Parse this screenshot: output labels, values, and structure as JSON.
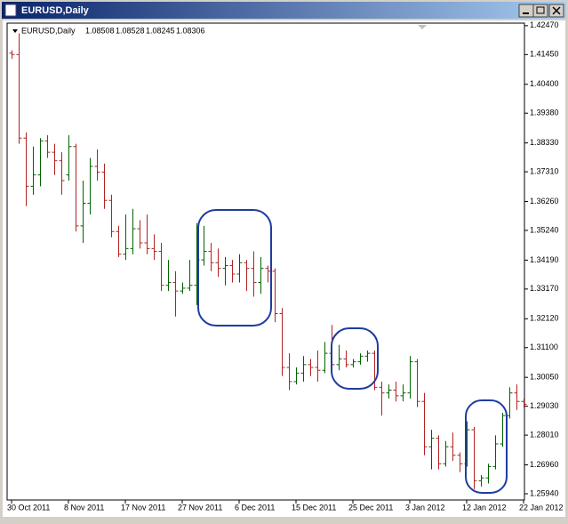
{
  "window_title": "EURUSD,Daily",
  "chart_data": {
    "type": "ohlc",
    "symbol": "EURUSD,Daily",
    "quote": [
      "1.08508",
      "1.08528",
      "1.08245",
      "1.08306"
    ],
    "up_color": "#006400",
    "down_color": "#b22222",
    "categories": [
      "30 Oct 2011",
      null,
      null,
      null,
      null,
      null,
      null,
      null,
      "8 Nov 2011",
      null,
      null,
      null,
      null,
      null,
      null,
      null,
      "17 Nov 2011",
      null,
      null,
      null,
      null,
      null,
      null,
      null,
      "27 Nov 2011",
      null,
      null,
      null,
      null,
      null,
      null,
      null,
      "6 Dec 2011",
      null,
      null,
      null,
      null,
      null,
      null,
      null,
      "15 Dec 2011",
      null,
      null,
      null,
      null,
      null,
      null,
      null,
      "25 Dec 2011",
      null,
      null,
      null,
      null,
      null,
      null,
      null,
      "3 Jan 2012",
      null,
      null,
      null,
      null,
      null,
      null,
      null,
      "12 Jan 2012",
      null,
      null,
      null,
      null,
      null,
      null,
      null,
      "22 Jan 2012"
    ],
    "open": [
      1.415,
      1.4145,
      1.385,
      1.368,
      1.372,
      1.384,
      1.38,
      1.377,
      1.372,
      1.382,
      1.354,
      1.362,
      1.375,
      1.373,
      1.363,
      1.352,
      1.344,
      1.346,
      1.353,
      1.348,
      1.346,
      1.345,
      1.333,
      1.334,
      1.331,
      1.332,
      1.333,
      1.342,
      1.345,
      1.341,
      1.339,
      1.34,
      1.337,
      1.341,
      1.339,
      1.334,
      1.339,
      1.338,
      1.323,
      1.304,
      1.299,
      1.302,
      1.305,
      1.304,
      1.303,
      1.309,
      1.305,
      1.307,
      1.305,
      1.306,
      1.308,
      1.309,
      1.297,
      1.295,
      1.296,
      1.294,
      1.295,
      1.306,
      1.292,
      1.276,
      1.279,
      1.27,
      1.276,
      1.273,
      1.27,
      1.282,
      1.264,
      1.265,
      1.269,
      1.277,
      1.287,
      1.295,
      1.292
    ],
    "high": [
      1.416,
      1.422,
      1.387,
      1.382,
      1.385,
      1.386,
      1.383,
      1.38,
      1.386,
      1.383,
      1.37,
      1.378,
      1.381,
      1.376,
      1.365,
      1.354,
      1.358,
      1.36,
      1.356,
      1.358,
      1.351,
      1.348,
      1.342,
      1.338,
      1.334,
      1.342,
      1.355,
      1.354,
      1.348,
      1.346,
      1.343,
      1.342,
      1.344,
      1.342,
      1.345,
      1.343,
      1.34,
      1.339,
      1.325,
      1.309,
      1.304,
      1.308,
      1.307,
      1.31,
      1.313,
      1.319,
      1.312,
      1.31,
      1.307,
      1.309,
      1.31,
      1.31,
      1.299,
      1.298,
      1.299,
      1.298,
      1.308,
      1.307,
      1.295,
      1.282,
      1.28,
      1.278,
      1.281,
      1.274,
      1.285,
      1.283,
      1.266,
      1.27,
      1.28,
      1.288,
      1.297,
      1.298,
      1.293
    ],
    "low": [
      1.413,
      1.383,
      1.361,
      1.365,
      1.368,
      1.378,
      1.372,
      1.365,
      1.37,
      1.352,
      1.348,
      1.358,
      1.37,
      1.36,
      1.35,
      1.343,
      1.342,
      1.344,
      1.346,
      1.344,
      1.342,
      1.331,
      1.331,
      1.322,
      1.33,
      1.331,
      1.326,
      1.34,
      1.338,
      1.336,
      1.333,
      1.334,
      1.334,
      1.331,
      1.329,
      1.33,
      1.334,
      1.32,
      1.301,
      1.296,
      1.298,
      1.299,
      1.301,
      1.299,
      1.302,
      1.302,
      1.303,
      1.304,
      1.304,
      1.305,
      1.306,
      1.296,
      1.287,
      1.293,
      1.292,
      1.292,
      1.293,
      1.29,
      1.273,
      1.268,
      1.268,
      1.269,
      1.271,
      1.267,
      1.269,
      1.261,
      1.262,
      1.263,
      1.268,
      1.276,
      1.286,
      1.289,
      1.29
    ],
    "close": [
      1.4145,
      1.385,
      1.368,
      1.372,
      1.384,
      1.38,
      1.377,
      1.37,
      1.382,
      1.354,
      1.362,
      1.375,
      1.373,
      1.363,
      1.352,
      1.344,
      1.346,
      1.353,
      1.348,
      1.346,
      1.345,
      1.333,
      1.334,
      1.331,
      1.332,
      1.333,
      1.342,
      1.345,
      1.341,
      1.339,
      1.34,
      1.337,
      1.341,
      1.339,
      1.334,
      1.339,
      1.338,
      1.323,
      1.304,
      1.299,
      1.302,
      1.305,
      1.304,
      1.303,
      1.309,
      1.305,
      1.307,
      1.305,
      1.306,
      1.308,
      1.309,
      1.297,
      1.295,
      1.296,
      1.294,
      1.295,
      1.306,
      1.292,
      1.276,
      1.279,
      1.27,
      1.276,
      1.273,
      1.27,
      1.282,
      1.264,
      1.265,
      1.269,
      1.277,
      1.287,
      1.295,
      1.292,
      1.291
    ],
    "ylim": [
      1.2572,
      1.4256
    ],
    "yticks": [
      {
        "value": 1.4247,
        "label": "1.42470"
      },
      {
        "value": 1.4145,
        "label": "1.41450"
      },
      {
        "value": 1.404,
        "label": "1.40400"
      },
      {
        "value": 1.3938,
        "label": "1.39380"
      },
      {
        "value": 1.3833,
        "label": "1.38330"
      },
      {
        "value": 1.3731,
        "label": "1.37310"
      },
      {
        "value": 1.3626,
        "label": "1.36260"
      },
      {
        "value": 1.3524,
        "label": "1.35240"
      },
      {
        "value": 1.3419,
        "label": "1.34190"
      },
      {
        "value": 1.3317,
        "label": "1.33170"
      },
      {
        "value": 1.3212,
        "label": "1.32120"
      },
      {
        "value": 1.311,
        "label": "1.31100"
      },
      {
        "value": 1.3005,
        "label": "1.30050"
      },
      {
        "value": 1.2903,
        "label": "1.29030"
      },
      {
        "value": 1.2801,
        "label": "1.28010"
      },
      {
        "value": 1.2696,
        "label": "1.26960"
      },
      {
        "value": 1.2594,
        "label": "1.25940"
      }
    ]
  }
}
